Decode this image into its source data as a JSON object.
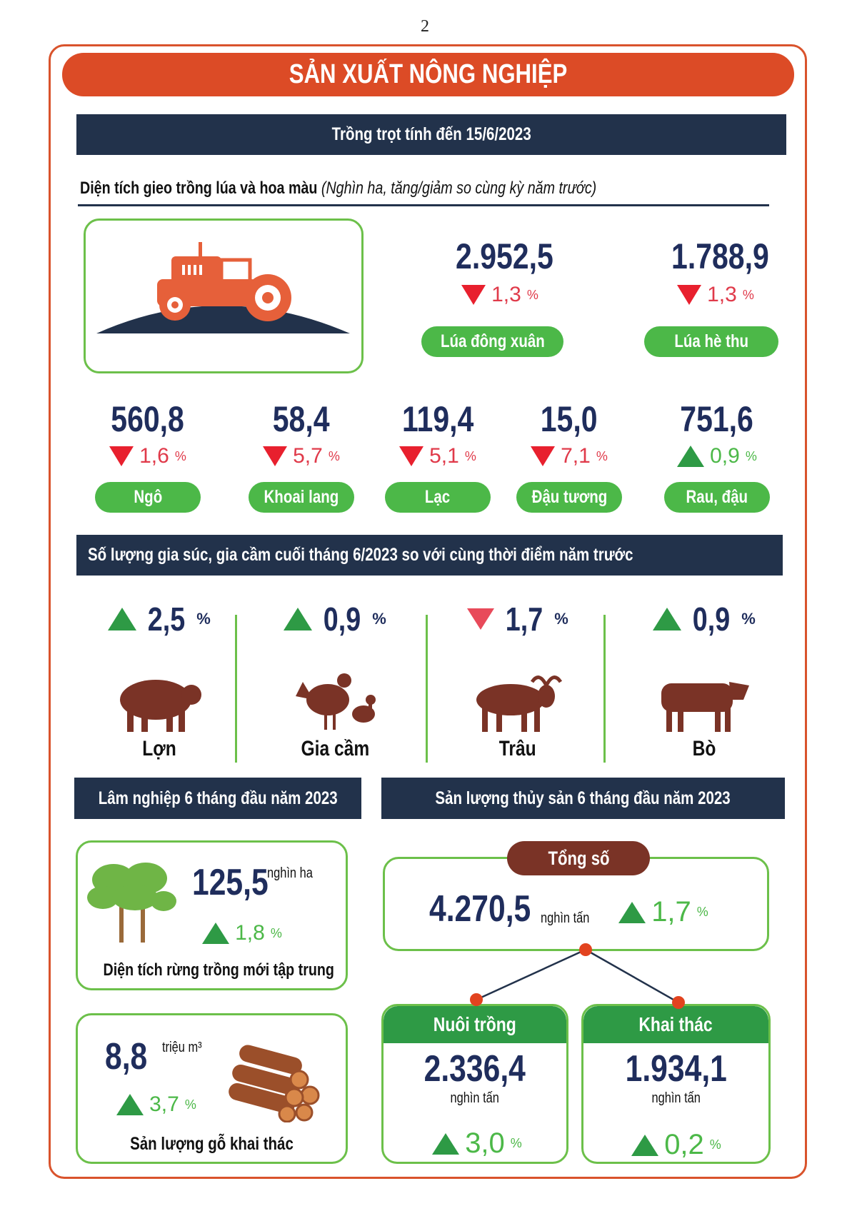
{
  "page_number": "2",
  "title": "SẢN XUẤT NÔNG NGHIỆP",
  "crop": {
    "header": "Trồng trọt tính đến 15/6/2023",
    "subtitle_bold": "Diện tích gieo trồng lúa và hoa màu",
    "subtitle_italic": "(Nghìn ha, tăng/giảm so cùng kỳ năm trước)",
    "rice": [
      {
        "label": "Lúa đông xuân",
        "value": "2.952,5",
        "change": "1,3",
        "direction": "down"
      },
      {
        "label": "Lúa hè thu",
        "value": "1.788,9",
        "change": "1,3",
        "direction": "down"
      }
    ],
    "crops": [
      {
        "label": "Ngô",
        "value": "560,8",
        "change": "1,6",
        "direction": "down"
      },
      {
        "label": "Khoai lang",
        "value": "58,4",
        "change": "5,7",
        "direction": "down"
      },
      {
        "label": "Lạc",
        "value": "119,4",
        "change": "5,1",
        "direction": "down"
      },
      {
        "label": "Đậu tương",
        "value": "15,0",
        "change": "7,1",
        "direction": "down"
      },
      {
        "label": "Rau, đậu",
        "value": "751,6",
        "change": "0,9",
        "direction": "up"
      }
    ]
  },
  "livestock": {
    "header": "Số lượng gia súc, gia cầm cuối tháng 6/2023 so với cùng thời điểm năm trước",
    "items": [
      {
        "label": "Lợn",
        "change": "2,5",
        "direction": "up",
        "icon": "pig-icon"
      },
      {
        "label": "Gia cầm",
        "change": "0,9",
        "direction": "up",
        "icon": "poultry-icon"
      },
      {
        "label": "Trâu",
        "change": "1,7",
        "direction": "down",
        "icon": "buffalo-icon"
      },
      {
        "label": "Bò",
        "change": "0,9",
        "direction": "up",
        "icon": "cow-icon"
      }
    ]
  },
  "forestry": {
    "header": "Lâm nghiệp 6 tháng đầu năm 2023",
    "new_forest": {
      "value": "125,5",
      "unit": "nghìn ha",
      "change": "1,8",
      "direction": "up",
      "label": "Diện tích rừng trồng mới tập trung"
    },
    "timber": {
      "value": "8,8",
      "unit": "triệu m³",
      "change": "3,7",
      "direction": "up",
      "label": "Sản lượng gỗ khai thác"
    }
  },
  "fishery": {
    "header": "Sản lượng thủy sản 6 tháng đầu năm 2023",
    "total": {
      "label": "Tổng số",
      "value": "4.270,5",
      "unit": "nghìn tấn",
      "change": "1,7",
      "direction": "up"
    },
    "aquaculture": {
      "label": "Nuôi trồng",
      "value": "2.336,4",
      "unit": "nghìn tấn",
      "change": "3,0",
      "direction": "up"
    },
    "capture": {
      "label": "Khai thác",
      "value": "1.934,1",
      "unit": "nghìn tấn",
      "change": "0,2",
      "direction": "up"
    }
  },
  "percent_sign": "%",
  "colors": {
    "title_bg": "#dc4b26",
    "navy": "#22324b",
    "green": "#4cb848",
    "red": "#e8202e",
    "value_blue": "#1f2d5c",
    "brown": "#7a3326"
  }
}
